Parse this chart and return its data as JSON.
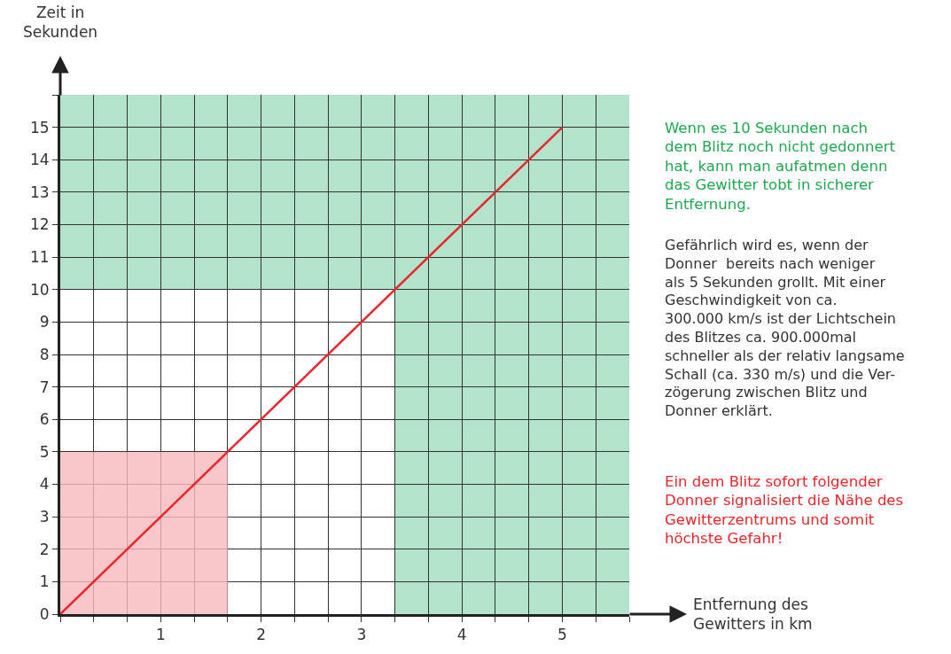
{
  "chart_data": {
    "type": "line",
    "xlabel": "Entfernung des\nGewitters in km",
    "ylabel": "Zeit in\nSekunden",
    "series": [
      {
        "type": "area",
        "color": "#f7b9bd",
        "x": [
          0,
          1.6667
        ],
        "values": [
          5,
          5
        ]
      },
      {
        "color": "#e8262b",
        "x": [
          0,
          5
        ],
        "values": [
          0,
          15
        ]
      }
    ],
    "bands": [
      {
        "axis": "y",
        "from": 10,
        "to": 16,
        "color": "#b3e3cb"
      },
      {
        "axis": "x",
        "from": 3.3333,
        "to": 5.6667,
        "color": "#b3e3cb"
      }
    ],
    "xlim": [
      0,
      5.6667
    ],
    "ylim": [
      0,
      16
    ],
    "xticks": [
      {
        "value": 0,
        "label": null
      },
      {
        "value": 0.3333,
        "label": null
      },
      {
        "value": 0.6667,
        "label": null
      },
      1,
      {
        "value": 1.3333,
        "label": null
      },
      {
        "value": 1.6667,
        "label": null
      },
      2,
      {
        "value": 2.3333,
        "label": null
      },
      {
        "value": 2.6667,
        "label": null
      },
      3,
      {
        "value": 3.3333,
        "label": null
      },
      {
        "value": 3.6667,
        "label": null
      },
      4,
      {
        "value": 4.3333,
        "label": null
      },
      {
        "value": 4.6667,
        "label": null
      },
      5,
      {
        "value": 5.3333,
        "label": null
      },
      {
        "value": 5.6667,
        "label": null
      }
    ],
    "yticks": [
      0,
      1,
      2,
      3,
      4,
      5,
      6,
      7,
      8,
      9,
      10,
      11,
      12,
      13,
      14,
      15,
      {
        "value": 16,
        "label": null
      }
    ],
    "grid": true,
    "marker": "none",
    "line_style": "solid",
    "annotations": [
      "Wenn es 10 Sekunden nach\ndem Blitz noch nicht gedonnert\nhat, kann man aufatmen denn\ndas Gewitter tobt in sicherer\nEntfernung.",
      "Gefährlich wird es, wenn der\nDonner  bereits nach weniger\nals 5 Sekunden grollt. Mit einer\nGeschwindigkeit von ca.\n300.000 km/s ist der Lichtschein\ndes Blitzes ca. 900.000mal\nschneller als der relativ langsame\nSchall (ca. 330 m/s) und die Ver-\nzögerung zwischen Blitz und\nDonner erklärt.",
      "Ein dem Blitz sofort folgender\nDonner signalisiert die Nähe des\nGewitterzentrums und somit\nhöchste Gefahr!"
    ]
  }
}
